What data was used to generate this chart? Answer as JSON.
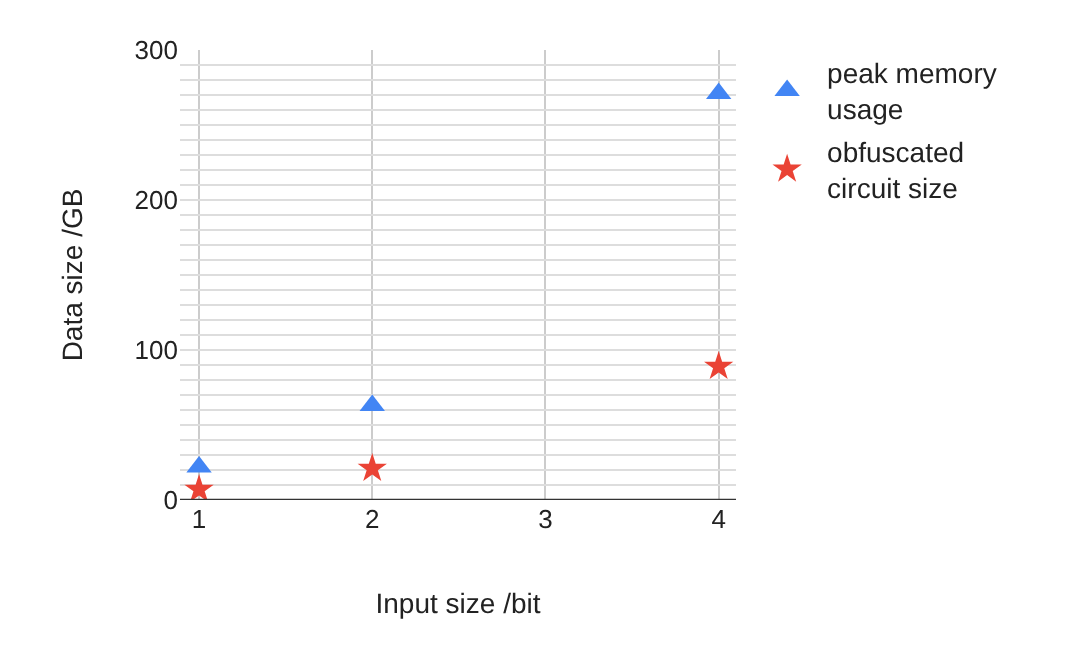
{
  "chart_data": {
    "type": "scatter",
    "xlabel": "Input size /bit",
    "ylabel": "Data size /GB",
    "x": [
      1,
      2,
      4
    ],
    "series": [
      {
        "name": "peak memory usage",
        "color": "#4285f4",
        "marker": "triangle",
        "values": [
          22,
          63,
          271
        ]
      },
      {
        "name": "obfuscated circuit size",
        "color": "#ea4335",
        "marker": "star",
        "values": [
          7,
          21,
          89
        ]
      }
    ],
    "xlim": [
      0.89,
      4.1
    ],
    "xticks": [
      1,
      2,
      3,
      4
    ],
    "ylim": [
      0,
      300
    ],
    "yticks": [
      0,
      {
        "value": 10,
        "label": null
      },
      {
        "value": 20,
        "label": null
      },
      {
        "value": 30,
        "label": null
      },
      {
        "value": 40,
        "label": null
      },
      {
        "value": 50,
        "label": null
      },
      {
        "value": 60,
        "label": null
      },
      {
        "value": 70,
        "label": null
      },
      {
        "value": 80,
        "label": null
      },
      {
        "value": 90,
        "label": null
      },
      100,
      {
        "value": 110,
        "label": null
      },
      {
        "value": 120,
        "label": null
      },
      {
        "value": 130,
        "label": null
      },
      {
        "value": 140,
        "label": null
      },
      {
        "value": 150,
        "label": null
      },
      {
        "value": 160,
        "label": null
      },
      {
        "value": 170,
        "label": null
      },
      {
        "value": 180,
        "label": null
      },
      {
        "value": 190,
        "label": null
      },
      200,
      {
        "value": 210,
        "label": null
      },
      {
        "value": 220,
        "label": null
      },
      {
        "value": 230,
        "label": null
      },
      {
        "value": 240,
        "label": null
      },
      {
        "value": 250,
        "label": null
      },
      {
        "value": 260,
        "label": null
      },
      {
        "value": 270,
        "label": null
      },
      {
        "value": 280,
        "label": null
      },
      {
        "value": 290,
        "label": null
      },
      300
    ],
    "grid": true,
    "legend": "top right"
  }
}
